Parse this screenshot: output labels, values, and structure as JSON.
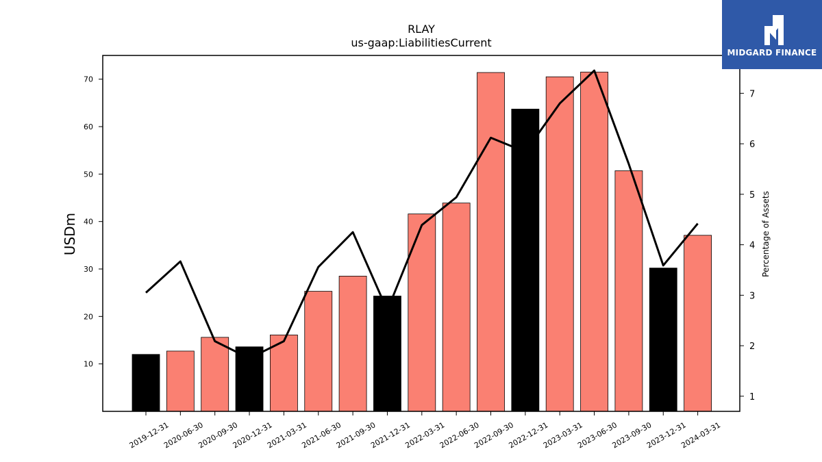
{
  "chart_data": {
    "type": "bar",
    "title": "RLAY",
    "subtitle": "us-gaap:LiabilitiesCurrent",
    "ylabel": "USDm",
    "y2label": "Percentage of Assets",
    "ylim": [
      0,
      75
    ],
    "y2lim": [
      0.7,
      7.75
    ],
    "yticks": [
      10,
      20,
      30,
      40,
      50,
      60,
      70
    ],
    "y2ticks": [
      1,
      2,
      3,
      4,
      5,
      6,
      7
    ],
    "categories": [
      "2019-12-31",
      "2020-06-30",
      "2020-09-30",
      "2020-12-31",
      "2021-03-31",
      "2021-06-30",
      "2021-09-30",
      "2021-12-31",
      "2022-03-31",
      "2022-06-30",
      "2022-09-30",
      "2022-12-31",
      "2023-03-31",
      "2023-06-30",
      "2023-09-30",
      "2023-12-31",
      "2024-03-31"
    ],
    "series": [
      {
        "type": "bar",
        "values": [
          12.0,
          12.7,
          15.6,
          13.6,
          16.1,
          25.3,
          28.5,
          24.3,
          41.6,
          43.9,
          71.4,
          63.7,
          70.5,
          71.5,
          50.7,
          30.2,
          37.1
        ],
        "colors": [
          "#000000",
          "#fa8072",
          "#fa8072",
          "#000000",
          "#fa8072",
          "#fa8072",
          "#fa8072",
          "#000000",
          "#fa8072",
          "#fa8072",
          "#fa8072",
          "#000000",
          "#fa8072",
          "#fa8072",
          "#fa8072",
          "#000000",
          "#fa8072"
        ]
      },
      {
        "type": "line",
        "axis": "right",
        "color": "#000000",
        "values": [
          3.05,
          3.67,
          2.09,
          1.75,
          2.09,
          3.56,
          4.25,
          2.7,
          4.39,
          4.94,
          6.12,
          5.84,
          6.8,
          7.45,
          5.6,
          3.59,
          4.42
        ]
      }
    ]
  },
  "logo": {
    "name": "midgard-logo-icon",
    "text": "MIDGARD FINANCE",
    "color": "#2f59a8"
  }
}
